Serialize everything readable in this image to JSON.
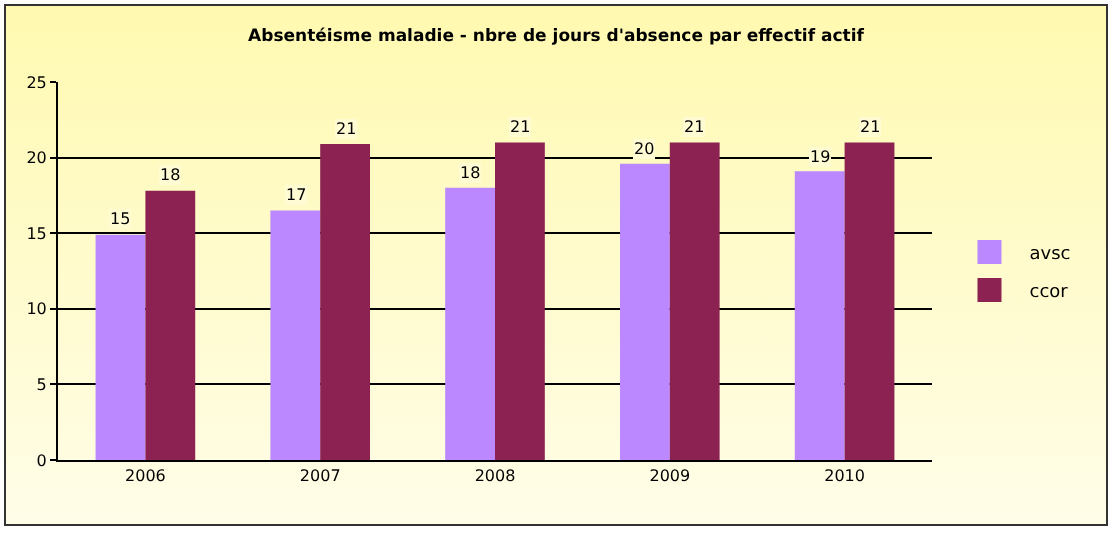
{
  "chart_data": {
    "type": "bar",
    "title": "Absentéisme maladie - nbre de jours d'absence par effectif actif",
    "categories": [
      "2006",
      "2007",
      "2008",
      "2009",
      "2010"
    ],
    "series": [
      {
        "name": "avsc",
        "color": "#bb88ff",
        "values": [
          14.9,
          16.5,
          18.0,
          19.6,
          19.1
        ],
        "value_labels": [
          "15",
          "17",
          "18",
          "20",
          "19"
        ]
      },
      {
        "name": "ccor",
        "color": "#8b2252",
        "values": [
          17.8,
          20.9,
          21.0,
          21.0,
          21.0
        ],
        "value_labels": [
          "18",
          "21",
          "21",
          "21",
          "21"
        ]
      }
    ],
    "ylim": [
      0,
      25
    ],
    "yticks": [
      0,
      5,
      10,
      15,
      20,
      25
    ],
    "grid": "y",
    "legend": "right"
  }
}
